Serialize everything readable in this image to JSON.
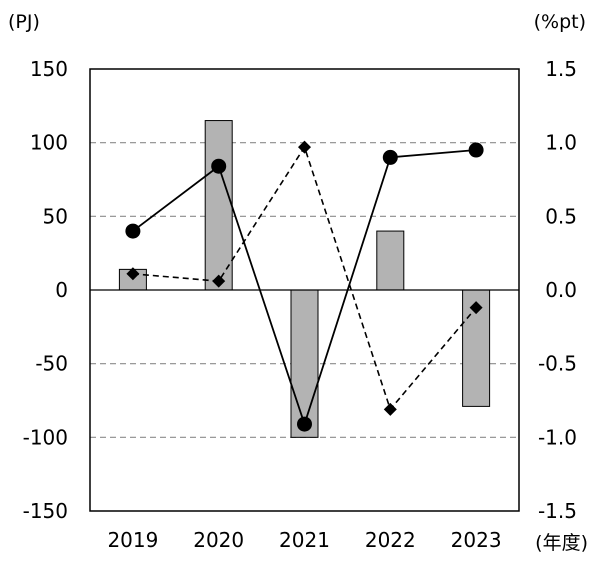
{
  "chart_data": {
    "type": "bar",
    "categories": [
      "2019",
      "2020",
      "2021",
      "2022",
      "2023"
    ],
    "xlabel": "(年度)",
    "y_left_unit": "(PJ)",
    "y_right_unit": "(%pt)",
    "y_left": {
      "min": -150,
      "max": 150,
      "ticks": [
        150,
        100,
        50,
        0,
        -50,
        -100,
        -150
      ],
      "tick_labels": [
        "150",
        "100",
        "50",
        "0",
        "-50",
        "-100",
        "-150"
      ]
    },
    "y_right": {
      "min": -1.5,
      "max": 1.5,
      "ticks": [
        1.5,
        1.0,
        0.5,
        0.0,
        -0.5,
        -1.0,
        -1.5
      ],
      "tick_labels": [
        "1.5",
        "1.0",
        "0.5",
        "0.0",
        "-0.5",
        "-1.0",
        "-1.5"
      ]
    },
    "grid": "horizontal-dashed",
    "series": [
      {
        "type": "bar",
        "axis": "left",
        "values": [
          14,
          115,
          -100,
          40,
          -79
        ]
      },
      {
        "type": "line",
        "style": "solid",
        "marker": "circle",
        "axis": "left",
        "values": [
          40,
          84,
          -91,
          90,
          95
        ]
      },
      {
        "type": "line",
        "style": "dashed",
        "marker": "diamond",
        "axis": "right",
        "values": [
          0.11,
          0.06,
          0.97,
          -0.81,
          -0.12
        ]
      }
    ],
    "colors": {
      "bar_fill": "#b3b3b3",
      "bar_stroke": "#000000",
      "line": "#000000",
      "grid": "#8c8c8c"
    }
  }
}
